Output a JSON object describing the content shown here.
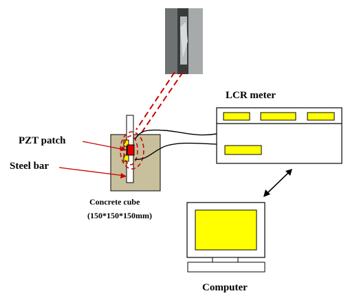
{
  "labels": {
    "lcr_meter": "LCR meter",
    "pzt_patch": "PZT patch",
    "steel_bar": "Steel bar",
    "concrete_cube_line1": "Concrete cube",
    "concrete_cube_line2": "(150*150*150mm)",
    "computer": "Computer"
  },
  "colors": {
    "concrete": "#c8bf9c",
    "display_fill": "#ffff00",
    "pzt": "#e00000",
    "leader": "#cc0000"
  },
  "icons": [
    "photo-inset",
    "double-arrow-icon"
  ]
}
